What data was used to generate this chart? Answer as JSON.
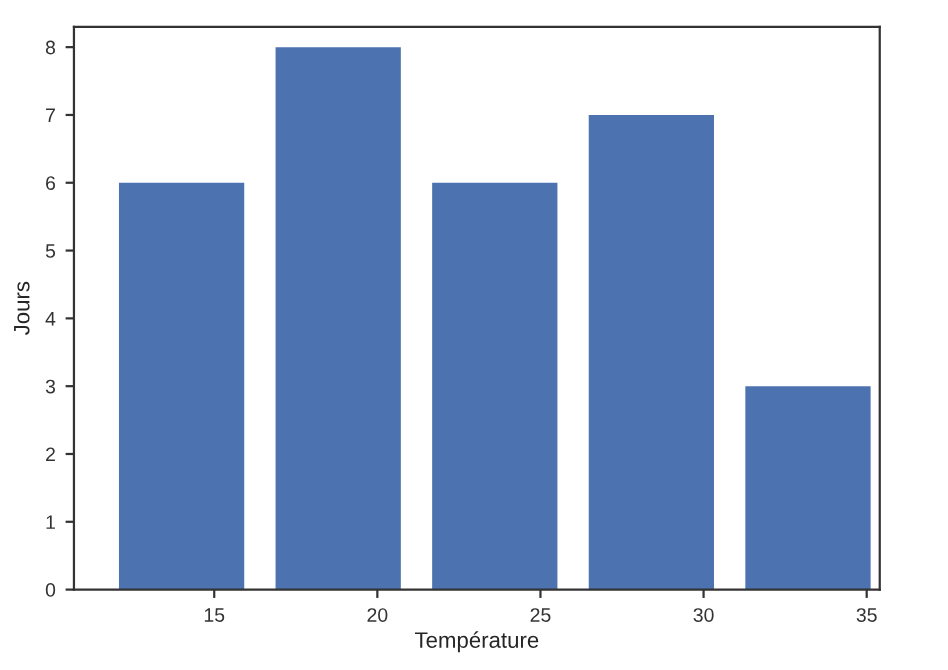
{
  "chart_data": {
    "type": "histogram",
    "xlabel": "Température",
    "ylabel": "Jours",
    "bins": [
      11.6,
      16.4,
      21.2,
      26.0,
      30.8,
      35.6
    ],
    "values": [
      6,
      8,
      6,
      7,
      3
    ],
    "color": "#4c72b0",
    "xlim": [
      10.7,
      35.4
    ],
    "xticks": [
      15,
      20,
      25,
      30,
      35
    ],
    "ylim": [
      0,
      8.3
    ],
    "yticks": [
      0,
      1,
      2,
      3,
      4,
      5,
      6,
      7,
      8
    ],
    "grid": false
  }
}
